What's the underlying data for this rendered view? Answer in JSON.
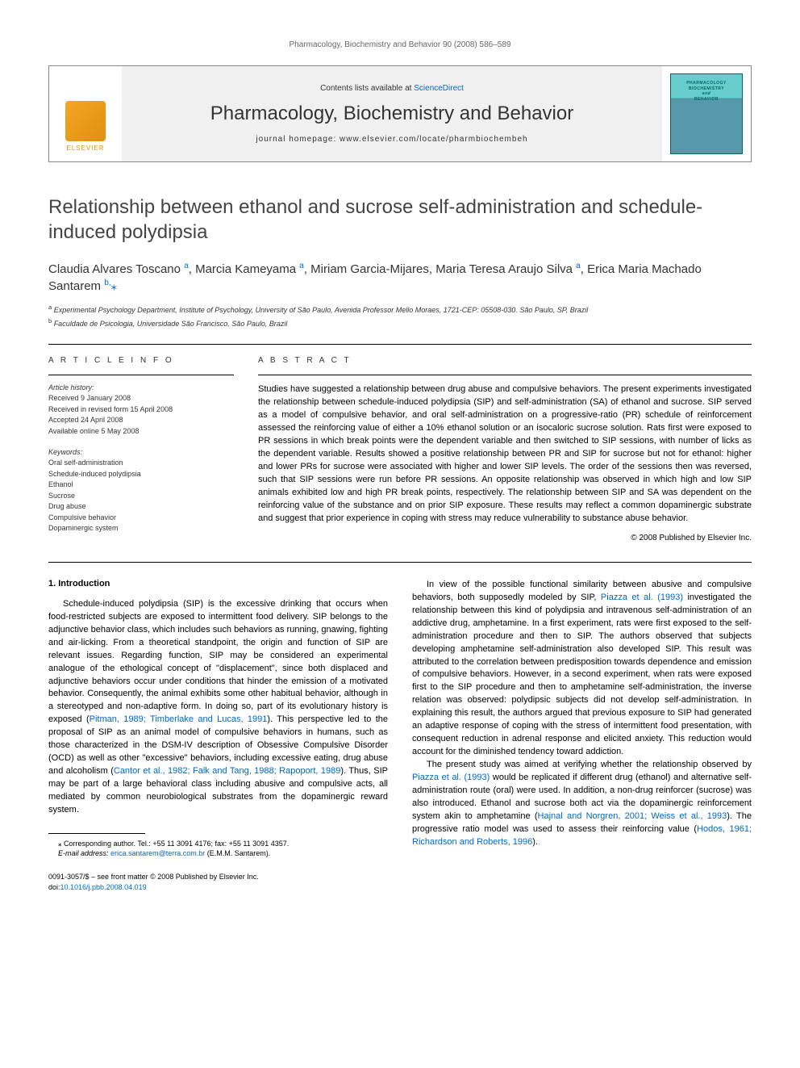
{
  "running_header": "Pharmacology, Biochemistry and Behavior 90 (2008) 586–589",
  "masthead": {
    "contents_prefix": "Contents lists available at ",
    "contents_link": "ScienceDirect",
    "journal_name": "Pharmacology, Biochemistry and Behavior",
    "homepage_prefix": "journal homepage: ",
    "homepage_url": "www.elsevier.com/locate/pharmbiochembeh",
    "publisher_label": "ELSEVIER",
    "cover_line1": "PHARMACOLOGY",
    "cover_line2": "BIOCHEMISTRY",
    "cover_line3": "and",
    "cover_line4": "BEHAVIOR"
  },
  "article": {
    "title": "Relationship between ethanol and sucrose self-administration and schedule-induced polydipsia",
    "authors_html": "Claudia Alvares Toscano <sup>a</sup>, Marcia Kameyama <sup>a</sup>, Miriam Garcia-Mijares, Maria Teresa Araujo Silva <sup>a</sup>, Erica Maria Machado Santarem <sup>b,</sup><span class=\"star\">⁎</span>",
    "affiliations": {
      "a": "Experimental Psychology Department, Institute of Psychology, University of São Paulo, Avenida Professor Mello Moraes, 1721-CEP: 05508-030. São Paulo, SP, Brazil",
      "b": "Faculdade de Psicologia, Universidade São Francisco, São Paulo, Brazil"
    }
  },
  "article_info": {
    "heading": "A R T I C L E   I N F O",
    "history_label": "Article history:",
    "received": "Received 9 January 2008",
    "revised": "Received in revised form 15 April 2008",
    "accepted": "Accepted 24 April 2008",
    "online": "Available online 5 May 2008",
    "keywords_label": "Keywords:",
    "keywords": [
      "Oral self-administration",
      "Schedule-induced polydipsia",
      "Ethanol",
      "Sucrose",
      "Drug abuse",
      "Compulsive behavior",
      "Dopaminergic system"
    ]
  },
  "abstract": {
    "heading": "A B S T R A C T",
    "text": "Studies have suggested a relationship between drug abuse and compulsive behaviors. The present experiments investigated the relationship between schedule-induced polydipsia (SIP) and self-administration (SA) of ethanol and sucrose. SIP served as a model of compulsive behavior, and oral self-administration on a progressive-ratio (PR) schedule of reinforcement assessed the reinforcing value of either a 10% ethanol solution or an isocaloric sucrose solution. Rats first were exposed to PR sessions in which break points were the dependent variable and then switched to SIP sessions, with number of licks as the dependent variable. Results showed a positive relationship between PR and SIP for sucrose but not for ethanol: higher and lower PRs for sucrose were associated with higher and lower SIP levels. The order of the sessions then was reversed, such that SIP sessions were run before PR sessions. An opposite relationship was observed in which high and low SIP animals exhibited low and high PR break points, respectively. The relationship between SIP and SA was dependent on the reinforcing value of the substance and on prior SIP exposure. These results may reflect a common dopaminergic substrate and suggest that prior experience in coping with stress may reduce vulnerability to substance abuse behavior.",
    "copyright": "© 2008 Published by Elsevier Inc."
  },
  "body": {
    "section1_heading": "1. Introduction",
    "col1_p1": "Schedule-induced polydipsia (SIP) is the excessive drinking that occurs when food-restricted subjects are exposed to intermittent food delivery. SIP belongs to the adjunctive behavior class, which includes such behaviors as running, gnawing, fighting and air-licking. From a theoretical standpoint, the origin and function of SIP are relevant issues. Regarding function, SIP may be considered an experimental analogue of the ethological concept of \"displacement\", since both displaced and adjunctive behaviors occur under conditions that hinder the emission of a motivated behavior. Consequently, the animal exhibits some other habitual behavior, although in a stereotyped and non-adaptive form. In doing so, part of its evolutionary history is exposed (<a>Pitman, 1989; Timberlake and Lucas, 1991</a>). This perspective led to the proposal of SIP as an animal model of compulsive behaviors in humans, such as those characterized in the DSM-IV description of Obsessive Compulsive Disorder (OCD) as well as other \"excessive\" behaviors, including excessive eating, drug abuse and alcoholism (<a>Cantor et al., 1982; Falk and Tang, 1988; Rapoport, 1989</a>). Thus, SIP may be part of a large behavioral class including abusive and compulsive acts, all mediated by common neurobiological substrates from the dopaminergic reward system.",
    "col2_p1": "In view of the possible functional similarity between abusive and compulsive behaviors, both supposedly modeled by SIP, <a>Piazza et al. (1993)</a> investigated the relationship between this kind of polydipsia and intravenous self-administration of an addictive drug, amphetamine. In a first experiment, rats were first exposed to the self-administration procedure and then to SIP. The authors observed that subjects developing amphetamine self-administration also developed SIP. This result was attributed to the correlation between predisposition towards dependence and emission of compulsive behaviors. However, in a second experiment, when rats were exposed first to the SIP procedure and then to amphetamine self-administration, the inverse relation was observed: polydipsic subjects did not develop self-administration. In explaining this result, the authors argued that previous exposure to SIP had generated an adaptive response of coping with the stress of intermittent food presentation, with consequent reduction in adrenal response and elicited anxiety. This reduction would account for the diminished tendency toward addiction.",
    "col2_p2": "The present study was aimed at verifying whether the relationship observed by <a>Piazza et al. (1993)</a> would be replicated if different drug (ethanol) and alternative self-administration route (oral) were used. In addition, a non-drug reinforcer (sucrose) was also introduced. Ethanol and sucrose both act via the dopaminergic reinforcement system akin to amphetamine (<a>Hajnal and Norgren, 2001; Weiss et al., 1993</a>). The progressive ratio model was used to assess their reinforcing value (<a>Hodos, 1961; Richardson and Roberts, 1996</a>)."
  },
  "footnotes": {
    "corr_label": "⁎ Corresponding author. Tel.: +55 11 3091 4176; fax: +55 11 3091 4357.",
    "email_label": "E-mail address:",
    "email": "erica.santarem@terra.com.br",
    "email_name": "(E.M.M. Santarem)."
  },
  "footer": {
    "front_matter": "0091-3057/$ – see front matter © 2008 Published by Elsevier Inc.",
    "doi_prefix": "doi:",
    "doi": "10.1016/j.pbb.2008.04.019"
  },
  "colors": {
    "link": "#0066cc",
    "text": "#000000",
    "muted": "#666666",
    "heading": "#333333",
    "elsevier_orange": "#e09010",
    "cover_border": "#006666"
  }
}
